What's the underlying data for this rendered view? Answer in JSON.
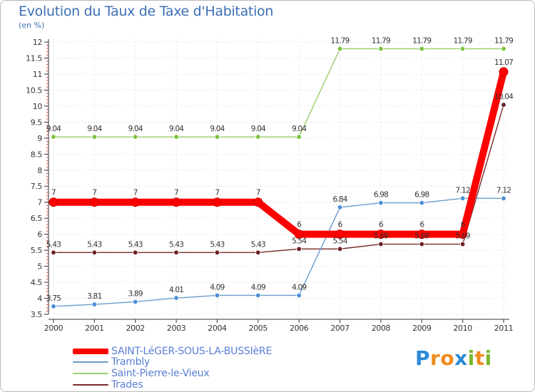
{
  "header": {
    "title": "Evolution du Taux de Taxe d'Habitation",
    "subtitle": "(en %)"
  },
  "brand": {
    "text": "Proxiti",
    "letters": [
      "P",
      "r",
      "o",
      "x",
      "i",
      "t",
      "i"
    ],
    "colors": [
      "#2a8ad8",
      "#f08a1e",
      "#f08a1e",
      "#2a8ad8",
      "#7ab82e",
      "#f08a1e",
      "#7ab82e"
    ]
  },
  "chart_data": {
    "type": "line",
    "title": "Evolution du Taux de Taxe d'Habitation",
    "ylabel": "(en %)",
    "xlabel": "",
    "categories": [
      "2000",
      "2001",
      "2002",
      "2003",
      "2004",
      "2005",
      "2006",
      "2007",
      "2008",
      "2009",
      "2010",
      "2011"
    ],
    "ylim": [
      3.5,
      12
    ],
    "yticks": [
      "3.5",
      "4",
      "4.5",
      "5",
      "5.5",
      "6",
      "6.5",
      "7",
      "7.5",
      "8",
      "8.5",
      "9",
      "9.5",
      "10",
      "10.5",
      "11",
      "11.5",
      "12"
    ],
    "legend_position": "bottom-left",
    "series": [
      {
        "name": "SAINT-LéGER-SOUS-LA-BUSSIèRE",
        "color": "#ff0000",
        "emphasis": true,
        "values": [
          7,
          7,
          7,
          7,
          7,
          7,
          6,
          6,
          6,
          6,
          6,
          11.07
        ],
        "labels": [
          "7",
          "7",
          "7",
          "7",
          "7",
          "7",
          "6",
          "6",
          "6",
          "6",
          "6",
          "11.07"
        ]
      },
      {
        "name": "Trambly",
        "color": "#6a9ccc",
        "marker": "#4a8fd6",
        "values": [
          3.75,
          3.81,
          3.89,
          4.01,
          4.09,
          4.09,
          4.09,
          6.84,
          6.98,
          6.98,
          7.12,
          7.12
        ],
        "labels": [
          "3.75",
          "3.81",
          "3.89",
          "4.01",
          "4.09",
          "4.09",
          "4.09",
          "6.84",
          "6.98",
          "6.98",
          "7.12",
          "7.12"
        ]
      },
      {
        "name": "Saint-Pierre-le-Vieux",
        "color": "#9acd6a",
        "marker": "#7cc33c",
        "values": [
          9.04,
          9.04,
          9.04,
          9.04,
          9.04,
          9.04,
          9.04,
          11.79,
          11.79,
          11.79,
          11.79,
          11.79
        ],
        "labels": [
          "9.04",
          "9.04",
          "9.04",
          "9.04",
          "9.04",
          "9.04",
          "9.04",
          "11.79",
          "11.79",
          "11.79",
          "11.79",
          "11.79"
        ]
      },
      {
        "name": "Trades",
        "color": "#7a2a2a",
        "marker": "#6b1f1f",
        "values": [
          5.43,
          5.43,
          5.43,
          5.43,
          5.43,
          5.43,
          5.54,
          5.54,
          5.69,
          5.69,
          5.69,
          10.04
        ],
        "labels": [
          "5.43",
          "5.43",
          "5.43",
          "5.43",
          "5.43",
          "5.43",
          "5.54",
          "5.54",
          "5.69",
          "5.69",
          "5.69",
          "10.04"
        ]
      }
    ]
  }
}
